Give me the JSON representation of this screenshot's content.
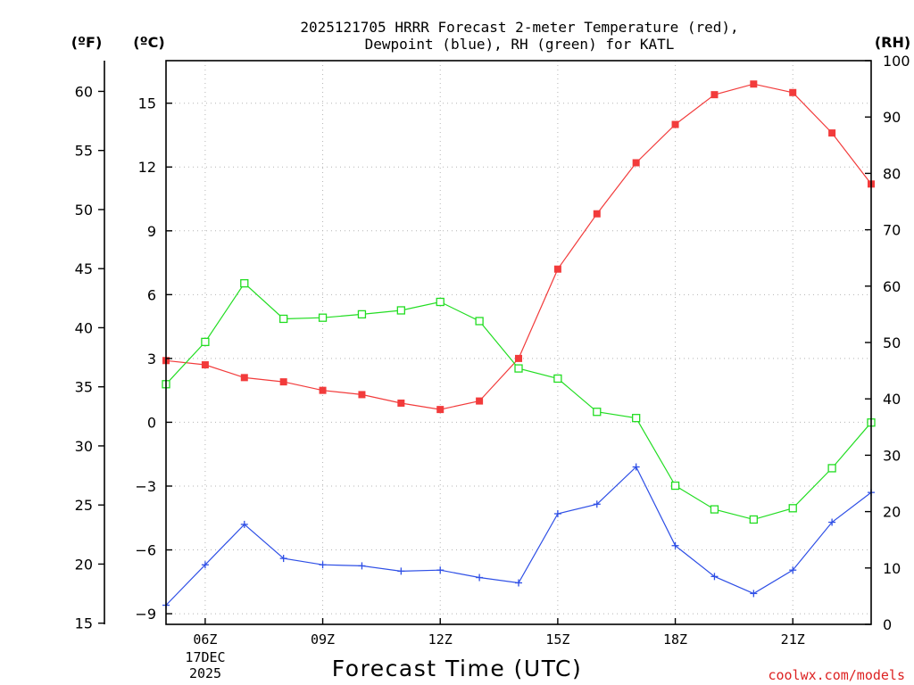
{
  "chart_data": {
    "type": "line",
    "title_line1": "2025121705 HRRR Forecast 2-meter Temperature (red),",
    "title_line2": "Dewpoint (blue), RH (green) for KATL",
    "xlabel": "Forecast Time (UTC)",
    "unit_labels": {
      "fahrenheit": "(ºF)",
      "celsius": "(ºC)",
      "rh": "(RH)"
    },
    "credit": "coolwx.com/models",
    "x_range": [
      5,
      23
    ],
    "x_ticks": [
      6,
      9,
      12,
      15,
      18,
      21
    ],
    "x_tick_labels": [
      "06Z",
      "09Z",
      "12Z",
      "15Z",
      "18Z",
      "21Z"
    ],
    "date_labels": [
      "17DEC",
      "2025"
    ],
    "celsius_axis": {
      "range": [
        -9.5,
        17.0
      ],
      "ticks": [
        -9,
        -6,
        -3,
        0,
        3,
        6,
        9,
        12,
        15
      ]
    },
    "fahrenheit_axis": {
      "ticks": [
        15,
        20,
        25,
        30,
        35,
        40,
        45,
        50,
        55,
        60
      ]
    },
    "rh_axis": {
      "range": [
        0,
        100
      ],
      "ticks": [
        0,
        10,
        20,
        30,
        40,
        50,
        60,
        70,
        80,
        90,
        100
      ]
    },
    "x": [
      5,
      6,
      7,
      8,
      9,
      10,
      11,
      12,
      13,
      14,
      15,
      16,
      17,
      18,
      19,
      20,
      21,
      22,
      23
    ],
    "series": [
      {
        "name": "Temperature",
        "axis": "celsius",
        "color": "#f23b3b",
        "marker": "filled-square",
        "values": [
          2.9,
          2.7,
          2.1,
          1.9,
          1.5,
          1.3,
          0.9,
          0.6,
          1.0,
          3.0,
          7.2,
          9.8,
          12.2,
          14.0,
          15.4,
          15.9,
          15.5,
          13.6,
          11.2
        ]
      },
      {
        "name": "Dewpoint",
        "axis": "celsius",
        "color": "#2e4fe6",
        "marker": "plus",
        "values": [
          -8.6,
          -6.7,
          -4.8,
          -6.4,
          -6.7,
          -6.75,
          -7.0,
          -6.95,
          -7.3,
          -7.55,
          -4.3,
          -3.85,
          -2.1,
          -5.8,
          -7.25,
          -8.05,
          -6.95,
          -4.7,
          -3.3
        ]
      },
      {
        "name": "RH",
        "axis": "rh",
        "color": "#22dd22",
        "marker": "open-square",
        "values": [
          42.6,
          50.1,
          60.5,
          54.2,
          54.4,
          55.0,
          55.7,
          57.2,
          53.8,
          45.4,
          43.6,
          37.7,
          36.6,
          24.6,
          20.4,
          18.6,
          20.6,
          27.7,
          35.8
        ]
      }
    ]
  }
}
